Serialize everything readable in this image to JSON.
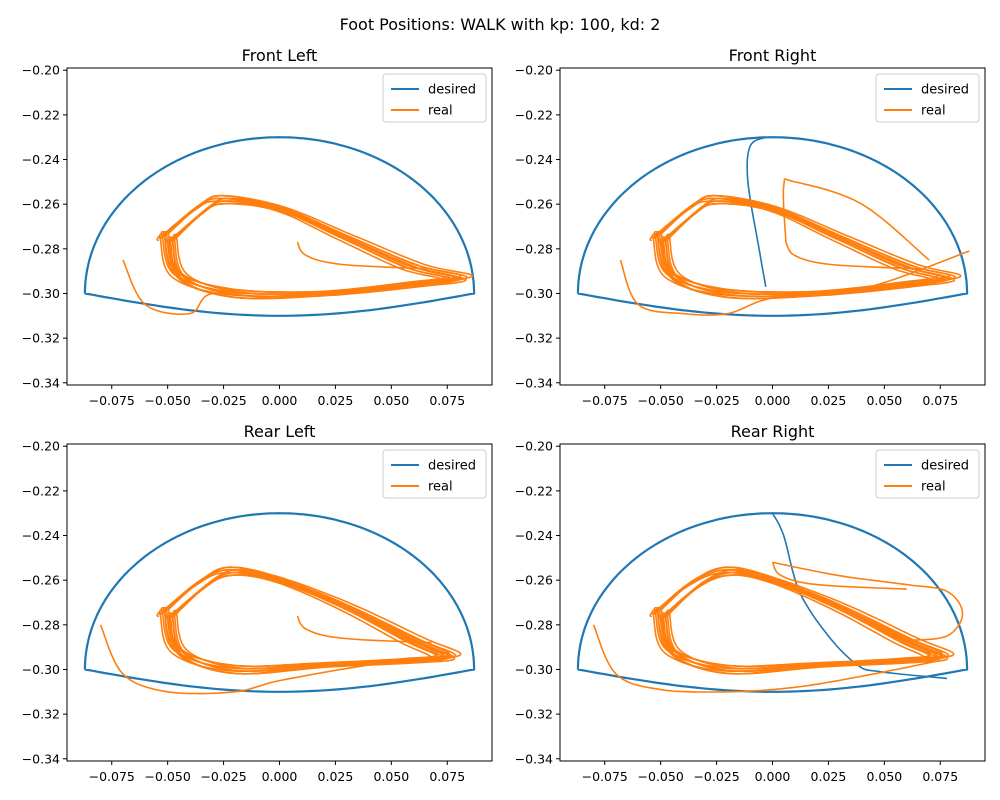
{
  "suptitle": "Foot Positions: WALK with kp: 100, kd: 2",
  "colors": {
    "desired": "#1f77b4",
    "real": "#ff7f0e"
  },
  "chart_data": [
    {
      "type": "line",
      "title": "Front Left",
      "xlim": [
        -0.095,
        0.095
      ],
      "ylim": [
        -0.341,
        -0.199
      ],
      "xticks": [
        "-0.075",
        "-0.050",
        "-0.025",
        "0.000",
        "0.025",
        "0.050",
        "0.075"
      ],
      "yticks": [
        "-0.20",
        "-0.22",
        "-0.24",
        "-0.26",
        "-0.28",
        "-0.30",
        "-0.32",
        "-0.34"
      ],
      "legend": {
        "position": "upper right",
        "entries": [
          "desired",
          "real"
        ]
      },
      "series": [
        {
          "name": "desired",
          "kind": "stance-swing",
          "x_range": [
            -0.087,
            0.087
          ],
          "y_apex": -0.23,
          "y_ground": -0.3,
          "y_min": -0.31
        },
        {
          "name": "real",
          "kind": "loops",
          "x": [
            -0.05,
            -0.035,
            -0.025,
            0.0,
            0.03,
            0.06,
            0.08,
            0.06,
            0.02,
            -0.02,
            -0.045,
            -0.05
          ],
          "y": [
            -0.275,
            -0.262,
            -0.258,
            -0.262,
            -0.275,
            -0.288,
            -0.293,
            -0.296,
            -0.3,
            -0.3,
            -0.292,
            -0.275
          ],
          "outer_loop": {
            "x": [
              -0.07,
              -0.06,
              -0.04,
              -0.03,
              0.0,
              0.04,
              0.08
            ],
            "y": [
              -0.285,
              -0.305,
              -0.309,
              -0.3,
              -0.302,
              -0.298,
              -0.293
            ]
          },
          "start": {
            "x": 0.008,
            "y": -0.277
          }
        }
      ]
    },
    {
      "type": "line",
      "title": "Front Right",
      "xlim": [
        -0.095,
        0.095
      ],
      "ylim": [
        -0.341,
        -0.199
      ],
      "xticks": [
        "-0.075",
        "-0.050",
        "-0.025",
        "0.000",
        "0.025",
        "0.050",
        "0.075"
      ],
      "yticks": [
        "-0.20",
        "-0.22",
        "-0.24",
        "-0.26",
        "-0.28",
        "-0.30",
        "-0.32",
        "-0.34"
      ],
      "legend": {
        "position": "upper right",
        "entries": [
          "desired",
          "real"
        ]
      },
      "series": [
        {
          "name": "desired",
          "kind": "stance-swing",
          "x_range": [
            -0.087,
            0.087
          ],
          "y_apex": -0.23,
          "y_ground": -0.3,
          "y_min": -0.31,
          "start_path": {
            "x": [
              -0.003,
              -0.006,
              -0.011,
              -0.01,
              -0.003
            ],
            "y": [
              -0.297,
              -0.28,
              -0.25,
              -0.234,
              -0.23
            ]
          }
        },
        {
          "name": "real",
          "kind": "loops",
          "x": [
            -0.05,
            -0.035,
            -0.025,
            0.0,
            0.03,
            0.06,
            0.078,
            0.06,
            0.02,
            -0.02,
            -0.045,
            -0.05
          ],
          "y": [
            -0.275,
            -0.262,
            -0.258,
            -0.262,
            -0.275,
            -0.288,
            -0.293,
            -0.296,
            -0.3,
            -0.3,
            -0.292,
            -0.275
          ],
          "outer_loop": {
            "x": [
              -0.068,
              -0.06,
              -0.04,
              -0.02,
              0.0,
              0.04,
              0.088
            ],
            "y": [
              -0.285,
              -0.305,
              -0.309,
              -0.309,
              -0.302,
              -0.298,
              -0.281
            ]
          },
          "start": {
            "x": 0.006,
            "y": -0.277
          },
          "first_swing": {
            "x": [
              0.006,
              0.005,
              0.01,
              0.04,
              0.07
            ],
            "y": [
              -0.277,
              -0.252,
              -0.25,
              -0.26,
              -0.285
            ]
          }
        }
      ]
    },
    {
      "type": "line",
      "title": "Rear Left",
      "xlim": [
        -0.095,
        0.095
      ],
      "ylim": [
        -0.341,
        -0.199
      ],
      "xticks": [
        "-0.075",
        "-0.050",
        "-0.025",
        "0.000",
        "0.025",
        "0.050",
        "0.075"
      ],
      "yticks": [
        "-0.20",
        "-0.22",
        "-0.24",
        "-0.26",
        "-0.28",
        "-0.30",
        "-0.32",
        "-0.34"
      ],
      "legend": {
        "position": "upper right",
        "entries": [
          "desired",
          "real"
        ]
      },
      "series": [
        {
          "name": "desired",
          "kind": "stance-swing",
          "x_range": [
            -0.087,
            0.087
          ],
          "y_apex": -0.23,
          "y_ground": -0.3,
          "y_min": -0.31
        },
        {
          "name": "real",
          "kind": "loops",
          "x": [
            -0.05,
            -0.035,
            -0.022,
            0.0,
            0.03,
            0.06,
            0.075,
            0.06,
            0.02,
            -0.02,
            -0.045,
            -0.05
          ],
          "y": [
            -0.275,
            -0.262,
            -0.256,
            -0.26,
            -0.272,
            -0.287,
            -0.294,
            -0.296,
            -0.298,
            -0.3,
            -0.292,
            -0.275
          ],
          "outer_loop": {
            "x": [
              -0.08,
              -0.07,
              -0.05,
              -0.02,
              0.0,
              0.04,
              0.075
            ],
            "y": [
              -0.28,
              -0.302,
              -0.31,
              -0.31,
              -0.305,
              -0.298,
              -0.294
            ]
          },
          "start": {
            "x": 0.008,
            "y": -0.276
          }
        }
      ]
    },
    {
      "type": "line",
      "title": "Rear Right",
      "xlim": [
        -0.095,
        0.095
      ],
      "ylim": [
        -0.341,
        -0.199
      ],
      "xticks": [
        "-0.075",
        "-0.050",
        "-0.025",
        "0.000",
        "0.025",
        "0.050",
        "0.075"
      ],
      "yticks": [
        "-0.20",
        "-0.22",
        "-0.24",
        "-0.26",
        "-0.28",
        "-0.30",
        "-0.32",
        "-0.34"
      ],
      "legend": {
        "position": "upper right",
        "entries": [
          "desired",
          "real"
        ]
      },
      "series": [
        {
          "name": "desired",
          "kind": "stance-swing",
          "x_range": [
            -0.087,
            0.087
          ],
          "y_apex": -0.23,
          "y_ground": -0.3,
          "y_min": -0.31,
          "start_path": {
            "x": [
              0.0,
              0.005,
              0.012,
              0.025,
              0.038,
              0.048,
              0.078
            ],
            "y": [
              -0.23,
              -0.24,
              -0.265,
              -0.285,
              -0.298,
              -0.301,
              -0.304
            ]
          }
        },
        {
          "name": "real",
          "kind": "loops",
          "x": [
            -0.05,
            -0.035,
            -0.02,
            0.0,
            0.03,
            0.06,
            0.075,
            0.06,
            0.02,
            -0.02,
            -0.045,
            -0.05
          ],
          "y": [
            -0.275,
            -0.262,
            -0.256,
            -0.26,
            -0.272,
            -0.287,
            -0.294,
            -0.296,
            -0.298,
            -0.3,
            -0.292,
            -0.275
          ],
          "outer_loop": {
            "x": [
              -0.08,
              -0.07,
              -0.05,
              -0.02,
              0.01,
              0.04,
              0.075
            ],
            "y": [
              -0.28,
              -0.302,
              -0.309,
              -0.31,
              -0.308,
              -0.303,
              -0.296
            ]
          },
          "start": {
            "x": 0.0,
            "y": -0.252
          },
          "first_swing": {
            "x": [
              0.0,
              0.03,
              0.06,
              0.078,
              0.085,
              0.078,
              0.06
            ],
            "y": [
              -0.252,
              -0.258,
              -0.262,
              -0.265,
              -0.275,
              -0.285,
              -0.287
            ]
          }
        }
      ]
    }
  ]
}
